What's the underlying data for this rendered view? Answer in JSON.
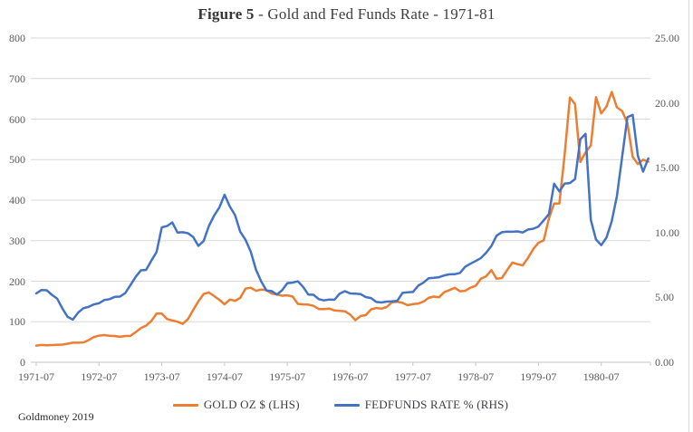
{
  "title": {
    "prefix": "Figure 5",
    "rest": " - Gold and Fed Funds Rate - 1971-81"
  },
  "footer": {
    "credit": "Goldmoney 2019"
  },
  "legend": [
    {
      "label": "GOLD OZ $ (LHS)",
      "color": "#ED7D31"
    },
    {
      "label": "FEDFUNDS RATE % (RHS)",
      "color": "#4472C4"
    }
  ],
  "chart_data": {
    "type": "line",
    "title": "Figure 5 - Gold and Fed Funds Rate - 1971-81",
    "x_frequency": "monthly",
    "x_start": "1971-07",
    "x_end": "1981-04",
    "grid": true,
    "legend_position": "bottom",
    "x_ticks": [
      {
        "label": "1971-07",
        "month_index": 0
      },
      {
        "label": "1972-07",
        "month_index": 12
      },
      {
        "label": "1973-07",
        "month_index": 24
      },
      {
        "label": "1974-07",
        "month_index": 36
      },
      {
        "label": "1975-07",
        "month_index": 48
      },
      {
        "label": "1976-07",
        "month_index": 60
      },
      {
        "label": "1977-07",
        "month_index": 72
      },
      {
        "label": "1978-07",
        "month_index": 84
      },
      {
        "label": "1979-07",
        "month_index": 96
      },
      {
        "label": "1980-07",
        "month_index": 108
      }
    ],
    "y_left": {
      "min": 0,
      "max": 800,
      "ticks": [
        {
          "label": "0",
          "value": 0
        },
        {
          "label": "100",
          "value": 100
        },
        {
          "label": "200",
          "value": 200
        },
        {
          "label": "300",
          "value": 300
        },
        {
          "label": "400",
          "value": 400
        },
        {
          "label": "500",
          "value": 500
        },
        {
          "label": "600",
          "value": 600
        },
        {
          "label": "700",
          "value": 700
        },
        {
          "label": "800",
          "value": 800
        }
      ]
    },
    "y_right": {
      "min": 0,
      "max": 25,
      "ticks": [
        {
          "label": "0.00",
          "value": 0
        },
        {
          "label": "5.00",
          "value": 5
        },
        {
          "label": "10.00",
          "value": 10
        },
        {
          "label": "15.00",
          "value": 15
        },
        {
          "label": "20.00",
          "value": 20
        },
        {
          "label": "25.00",
          "value": 25
        }
      ]
    },
    "series": [
      {
        "name": "GOLD OZ $ (LHS)",
        "axis": "left",
        "color": "#ED7D31",
        "values": [
          41.2,
          42.7,
          42.0,
          42.5,
          42.9,
          43.6,
          45.8,
          48.3,
          48.3,
          49.0,
          54.6,
          62.1,
          65.7,
          67.0,
          65.5,
          64.9,
          62.9,
          64.9,
          65.1,
          74.2,
          84.4,
          90.5,
          102.0,
          120.1,
          120.2,
          106.8,
          103.0,
          100.1,
          94.8,
          106.7,
          129.2,
          150.2,
          168.4,
          172.2,
          163.3,
          154.1,
          143.0,
          154.6,
          151.8,
          158.8,
          181.7,
          183.9,
          176.3,
          179.5,
          178.2,
          169.7,
          167.4,
          164.3,
          165.1,
          162.3,
          144.1,
          142.9,
          142.4,
          139.3,
          131.5,
          131.1,
          132.6,
          127.9,
          126.9,
          125.7,
          117.8,
          104.0,
          114.2,
          116.1,
          130.5,
          133.9,
          132.3,
          136.3,
          148.2,
          149.2,
          146.6,
          140.8,
          143.4,
          144.9,
          149.6,
          158.9,
          162.1,
          160.5,
          173.2,
          178.2,
          183.7,
          175.3,
          176.3,
          183.8,
          188.7,
          206.3,
          212.1,
          227.4,
          206.1,
          207.8,
          227.3,
          245.7,
          242.0,
          239.2,
          257.6,
          279.1,
          294.7,
          300.8,
          355.1,
          391.7,
          392.0,
          512.0,
          653.0,
          637.0,
          494.0,
          518.0,
          535.0,
          654.0,
          614.0,
          631.0,
          667.0,
          629.0,
          620.0,
          590.0,
          507.0,
          489.0,
          500.0,
          495.0
        ]
      },
      {
        "name": "FEDFUNDS RATE % (RHS)",
        "axis": "right",
        "color": "#4472C4",
        "values": [
          5.31,
          5.57,
          5.55,
          5.2,
          4.91,
          4.14,
          3.5,
          3.29,
          3.83,
          4.17,
          4.27,
          4.46,
          4.55,
          4.8,
          4.87,
          5.04,
          5.06,
          5.33,
          5.94,
          6.58,
          7.09,
          7.12,
          7.84,
          8.49,
          10.4,
          10.5,
          10.78,
          10.01,
          10.03,
          9.95,
          9.65,
          8.97,
          9.35,
          10.51,
          11.31,
          11.93,
          12.92,
          12.01,
          11.34,
          10.06,
          9.45,
          8.53,
          7.13,
          6.24,
          5.54,
          5.49,
          5.22,
          5.55,
          6.1,
          6.14,
          6.24,
          5.82,
          5.22,
          5.2,
          4.87,
          4.77,
          4.84,
          4.82,
          5.29,
          5.48,
          5.31,
          5.29,
          5.25,
          5.03,
          4.95,
          4.65,
          4.61,
          4.68,
          4.69,
          4.73,
          5.35,
          5.39,
          5.42,
          5.9,
          6.14,
          6.47,
          6.51,
          6.56,
          6.7,
          6.78,
          6.79,
          6.89,
          7.36,
          7.6,
          7.81,
          8.04,
          8.45,
          8.96,
          9.76,
          10.03,
          10.07,
          10.06,
          10.09,
          10.01,
          10.24,
          10.29,
          10.47,
          10.94,
          11.43,
          13.77,
          13.18,
          13.78,
          13.82,
          14.13,
          17.19,
          17.61,
          10.98,
          9.47,
          9.03,
          9.61,
          10.87,
          12.81,
          15.85,
          18.9,
          19.08,
          15.93,
          14.7,
          15.72
        ]
      }
    ]
  }
}
